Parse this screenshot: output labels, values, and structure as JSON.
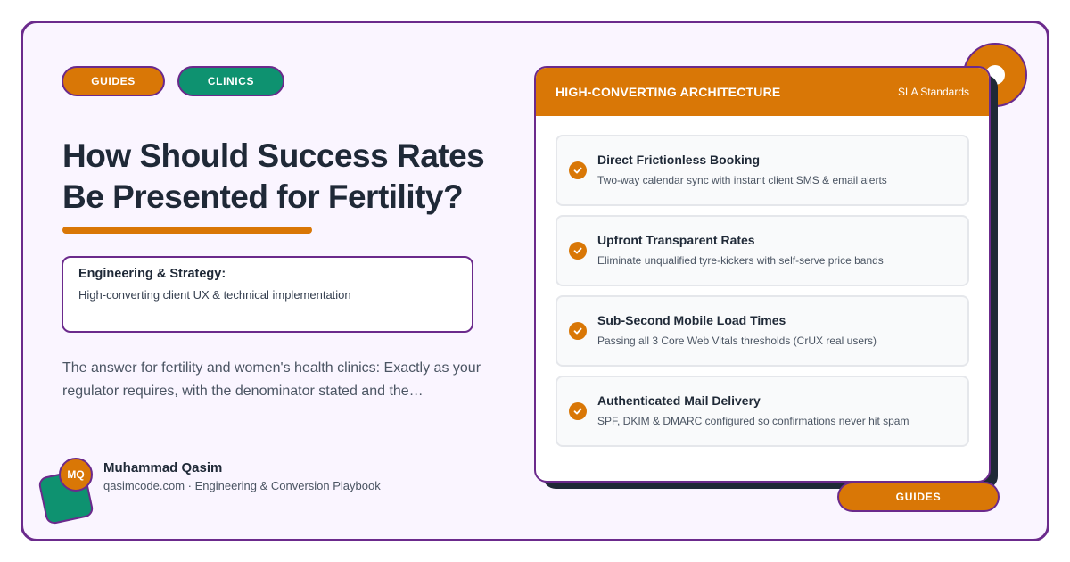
{
  "tags": {
    "primary": "GUIDES",
    "secondary": "CLINICS"
  },
  "article": {
    "title": "How Should Success Rates Be Presented for Fertility?",
    "strategy_heading": "Engineering & Strategy:",
    "strategy_sub": "High-converting client UX & technical implementation",
    "answer": "The answer for fertility and women's health clinics: Exactly as your regulator requires, with the denominator stated and the…"
  },
  "author": {
    "initials": "MQ",
    "name": "Muhammad Qasim",
    "meta": "qasimcode.com · Engineering & Conversion Playbook"
  },
  "card": {
    "title": "HIGH-CONVERTING ARCHITECTURE",
    "tag": "SLA Standards",
    "features": [
      {
        "title": "Direct Frictionless Booking",
        "desc": "Two-way calendar sync with instant client SMS & email alerts"
      },
      {
        "title": "Upfront Transparent Rates",
        "desc": "Eliminate unqualified tyre-kickers with self-serve price bands"
      },
      {
        "title": "Sub-Second Mobile Load Times",
        "desc": "Passing all 3 Core Web Vitals thresholds (CrUX real users)"
      },
      {
        "title": "Authenticated Mail Delivery",
        "desc": "SPF, DKIM & DMARC configured so confirmations never hit spam"
      }
    ]
  },
  "bottom_tag": "GUIDES",
  "colors": {
    "accent": "#d97706",
    "green": "#0e9270",
    "border": "#6b2a8c",
    "text": "#1f2937",
    "background": "#faf5ff"
  },
  "icons": {
    "feature_check": "check-circle-icon"
  }
}
